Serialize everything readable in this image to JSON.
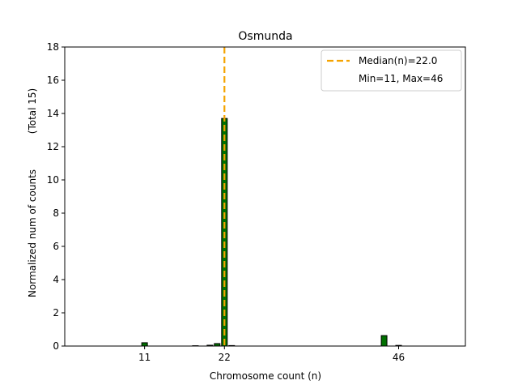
{
  "chart_data": {
    "type": "bar",
    "title": "Osmunda",
    "xlabel": "Chromosome count (n)",
    "ylabel": "Normalized num of counts",
    "ylabel2": "(Total 15)",
    "xlim": [
      0,
      55.2
    ],
    "ylim": [
      0,
      18
    ],
    "xticks": [
      11,
      22,
      46
    ],
    "yticks": [
      0,
      2,
      4,
      6,
      8,
      10,
      12,
      14,
      16,
      18
    ],
    "x": [
      11,
      18,
      20,
      21,
      22,
      23,
      44,
      46
    ],
    "values": [
      0.2,
      0.02,
      0.05,
      0.15,
      13.7,
      0.03,
      0.63,
      0.04
    ],
    "bar_color": "#007000",
    "median": 22.0,
    "median_color": "#f5a300",
    "legend": {
      "placement": "top-right",
      "entries": [
        "Median(n)=22.0",
        "Min=11, Max=46"
      ]
    }
  }
}
